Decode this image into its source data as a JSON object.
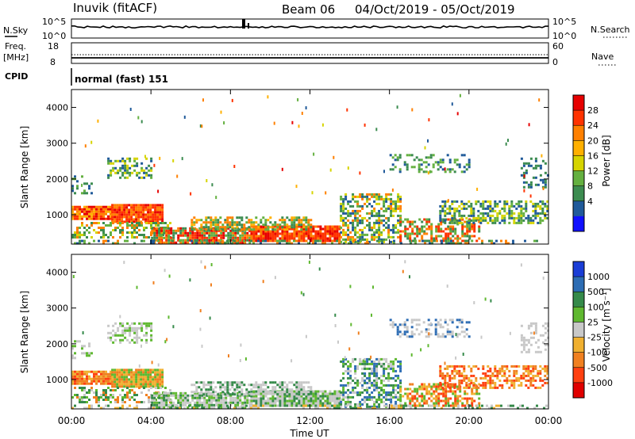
{
  "header": {
    "station": "Inuvik (fitACF)",
    "beam": "Beam 06",
    "date_range": "04/Oct/2019 - 05/Oct/2019"
  },
  "top_panels": {
    "nsky_label": "N.Sky",
    "nsearch_label": "N.Search",
    "nsky_ticks": [
      "10^5",
      "10^0"
    ],
    "nsearch_ticks": [
      "10^5",
      "10^0"
    ],
    "freq_label_1": "Freq.",
    "freq_label_2": "[MHz]",
    "freq_ticks": [
      "18",
      "8"
    ],
    "nave_label": "Nave",
    "nave_ticks": [
      "60",
      "0"
    ],
    "cpid_label": "CPID",
    "cpid_text": "normal (fast) 151"
  },
  "chart_data": [
    {
      "type": "heatmap",
      "panel": "power",
      "ylabel": "Slant Range [km]",
      "xlabel": "",
      "x_range_hours": [
        0,
        24
      ],
      "ylim": [
        180,
        4500
      ],
      "yticks": [
        "1000",
        "2000",
        "3000",
        "4000"
      ],
      "colorbar_label": "Power [dB]",
      "colorbar_ticks": [
        "28",
        "24",
        "20",
        "16",
        "12",
        "8",
        "4"
      ],
      "colorbar_colors": [
        "#e60000",
        "#ff3300",
        "#ff8000",
        "#ffb000",
        "#d6d400",
        "#64b040",
        "#3c8c50",
        "#205a9a",
        "#1010ff"
      ]
    },
    {
      "type": "heatmap",
      "panel": "velocity",
      "ylabel": "Slant Range [km]",
      "xlabel": "Time UT",
      "x_range_hours": [
        0,
        24
      ],
      "ylim": [
        180,
        4500
      ],
      "yticks": [
        "1000",
        "2000",
        "3000",
        "4000"
      ],
      "xticks": [
        "00:00",
        "04:00",
        "08:00",
        "12:00",
        "16:00",
        "20:00",
        "00:00"
      ],
      "colorbar_label": "Velocity [m s⁻¹]",
      "colorbar_ticks": [
        "1000",
        "500",
        "100",
        "25",
        "-25",
        "-100",
        "-500",
        "-1000"
      ],
      "colorbar_colors": [
        "#1a3dd6",
        "#2d6db4",
        "#358a4a",
        "#5fb830",
        "#c8c8c8",
        "#f0b030",
        "#f08020",
        "#ff4010",
        "#e00000"
      ]
    }
  ]
}
